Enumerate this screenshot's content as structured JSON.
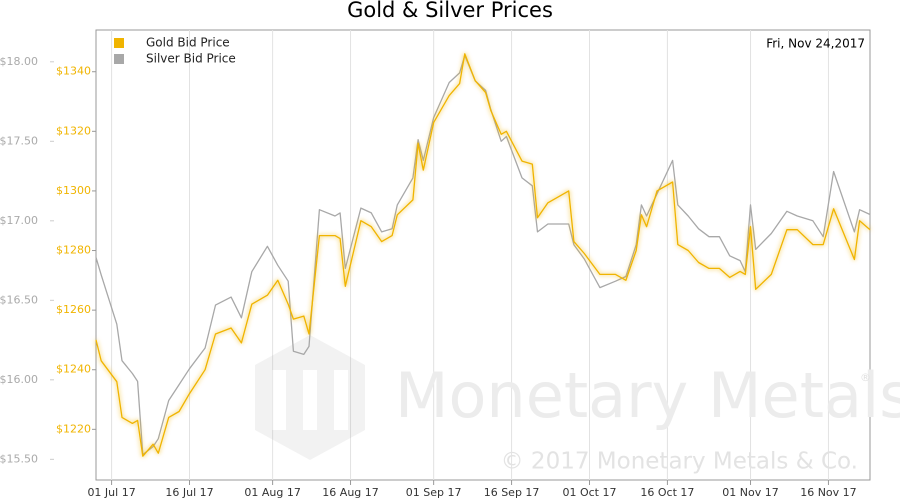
{
  "chart_data": {
    "type": "line",
    "title": "Gold & Silver Prices",
    "date_label": "Fri, Nov 24,2017",
    "watermark": "Monetary Metals",
    "watermark_mark": "®",
    "copyright": "© 2017 Monetary Metals & Co.",
    "grid": "x",
    "legend": "top-left",
    "x": [
      "2017-06-28",
      "2017-06-29",
      "2017-07-02",
      "2017-07-03",
      "2017-07-05",
      "2017-07-06",
      "2017-07-07",
      "2017-07-09",
      "2017-07-10",
      "2017-07-12",
      "2017-07-14",
      "2017-07-16",
      "2017-07-19",
      "2017-07-21",
      "2017-07-24",
      "2017-07-26",
      "2017-07-28",
      "2017-07-31",
      "2017-08-02",
      "2017-08-04",
      "2017-08-05",
      "2017-08-07",
      "2017-08-08",
      "2017-08-10",
      "2017-08-13",
      "2017-08-14",
      "2017-08-15",
      "2017-08-18",
      "2017-08-20",
      "2017-08-22",
      "2017-08-24",
      "2017-08-25",
      "2017-08-28",
      "2017-08-29",
      "2017-08-30",
      "2017-09-01",
      "2017-09-04",
      "2017-09-06",
      "2017-09-07",
      "2017-09-09",
      "2017-09-11",
      "2017-09-12",
      "2017-09-14",
      "2017-09-15",
      "2017-09-18",
      "2017-09-20",
      "2017-09-21",
      "2017-09-23",
      "2017-09-27",
      "2017-09-28",
      "2017-09-30",
      "2017-10-03",
      "2017-10-06",
      "2017-10-08",
      "2017-10-10",
      "2017-10-11",
      "2017-10-12",
      "2017-10-14",
      "2017-10-17",
      "2017-10-18",
      "2017-10-20",
      "2017-10-22",
      "2017-10-24",
      "2017-10-26",
      "2017-10-28",
      "2017-10-30",
      "2017-10-31",
      "2017-11-01",
      "2017-11-02",
      "2017-11-05",
      "2017-11-08",
      "2017-11-10",
      "2017-11-13",
      "2017-11-15",
      "2017-11-17",
      "2017-11-21",
      "2017-11-22",
      "2017-11-24"
    ],
    "series": [
      {
        "name": "Gold Bid Price",
        "color": "#f0b400",
        "values": [
          1250,
          1243,
          1236,
          1224,
          1222,
          1223,
          1211,
          1215,
          1212,
          1224,
          1226,
          1232,
          1240,
          1252,
          1254,
          1249,
          1262,
          1265,
          1270,
          1262,
          1257,
          1258,
          1252,
          1285,
          1285,
          1284,
          1268,
          1290,
          1288,
          1283,
          1285,
          1292,
          1297,
          1316,
          1307,
          1323,
          1332,
          1336,
          1346,
          1337,
          1333,
          1327,
          1319,
          1320,
          1310,
          1309,
          1291,
          1296,
          1300,
          1283,
          1279,
          1272,
          1272,
          1270,
          1280,
          1292,
          1288,
          1300,
          1303,
          1282,
          1280,
          1276,
          1274,
          1274,
          1271,
          1273,
          1272,
          1288,
          1267,
          1272,
          1287,
          1287,
          1282,
          1282,
          1294,
          1277,
          1290,
          1287
        ]
      },
      {
        "name": "Silver Bid Price",
        "color": "#a8a8a8",
        "axis": "y2",
        "values": [
          16.77,
          16.66,
          16.35,
          16.12,
          16.04,
          15.99,
          15.53,
          15.58,
          15.63,
          15.87,
          15.97,
          16.07,
          16.2,
          16.47,
          16.52,
          16.39,
          16.68,
          16.84,
          16.72,
          16.62,
          16.18,
          16.16,
          16.21,
          17.07,
          17.03,
          17.05,
          16.7,
          17.08,
          17.05,
          16.93,
          16.95,
          17.1,
          17.27,
          17.51,
          17.38,
          17.65,
          17.87,
          17.93,
          18.04,
          17.88,
          17.82,
          17.7,
          17.5,
          17.53,
          17.27,
          17.22,
          16.93,
          16.98,
          16.98,
          16.85,
          16.76,
          16.58,
          16.62,
          16.65,
          16.85,
          17.1,
          17.03,
          17.17,
          17.38,
          17.1,
          17.03,
          16.95,
          16.9,
          16.9,
          16.78,
          16.75,
          16.68,
          17.1,
          16.82,
          16.92,
          17.06,
          17.03,
          17.0,
          16.9,
          17.31,
          16.93,
          17.07,
          17.04
        ]
      }
    ],
    "xlim": [
      "2017-06-28",
      "2017-11-24"
    ],
    "xticks": [
      {
        "value": "2017-07-01",
        "label": "01 Jul 17"
      },
      {
        "value": "2017-07-16",
        "label": "16 Jul 17"
      },
      {
        "value": "2017-08-01",
        "label": "01 Aug 17"
      },
      {
        "value": "2017-08-16",
        "label": "16 Aug 17"
      },
      {
        "value": "2017-09-01",
        "label": "01 Sep 17"
      },
      {
        "value": "2017-09-16",
        "label": "16 Sep 17"
      },
      {
        "value": "2017-10-01",
        "label": "01 Oct 17"
      },
      {
        "value": "2017-10-16",
        "label": "16 Oct 17"
      },
      {
        "value": "2017-11-01",
        "label": "01 Nov 17"
      },
      {
        "value": "2017-11-16",
        "label": "16 Nov 17"
      }
    ],
    "ylim": [
      1203,
      1354
    ],
    "yticks": [
      {
        "value": 1220,
        "label": "$1220"
      },
      {
        "value": 1240,
        "label": "$1240"
      },
      {
        "value": 1260,
        "label": "$1260"
      },
      {
        "value": 1280,
        "label": "$1280"
      },
      {
        "value": 1300,
        "label": "$1300"
      },
      {
        "value": 1320,
        "label": "$1320"
      },
      {
        "value": 1340,
        "label": "$1340"
      }
    ],
    "y2lim": [
      15.37,
      18.2
    ],
    "y2ticks": [
      {
        "value": 15.5,
        "label": "$15.50"
      },
      {
        "value": 16,
        "label": "$16.00"
      },
      {
        "value": 16.5,
        "label": "$16.50"
      },
      {
        "value": 17,
        "label": "$17.00"
      },
      {
        "value": 17.5,
        "label": "$17.50"
      },
      {
        "value": 18,
        "label": "$18.00"
      }
    ]
  }
}
